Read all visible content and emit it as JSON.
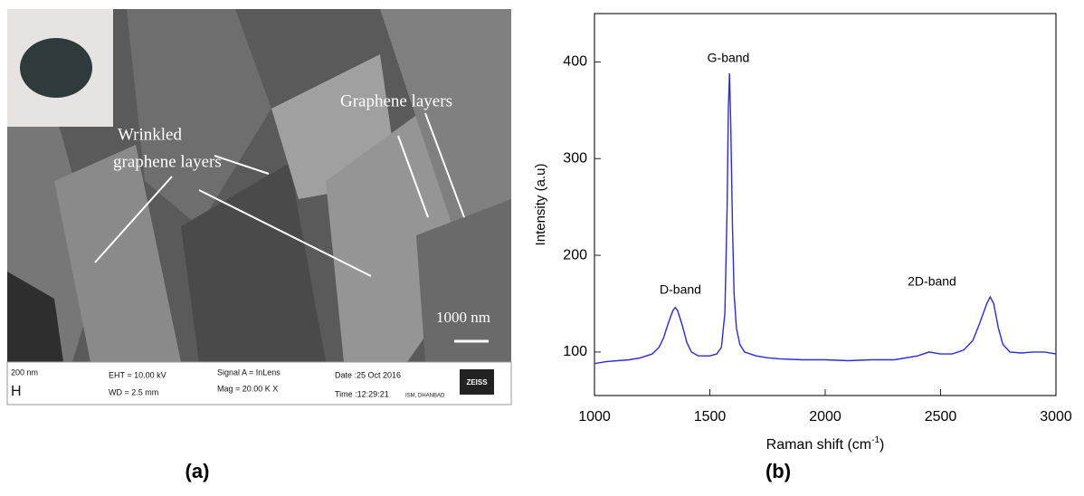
{
  "panel_a": {
    "annotations": {
      "graphene": "Graphene layers",
      "wrinkled_1": "Wrinkled",
      "wrinkled_2": "graphene layers",
      "scale": "1000 nm"
    },
    "info_bar": {
      "pixel": "200 nm",
      "h": "H",
      "eht": "EHT = 10.00 kV",
      "wd": "WD =  2.5 mm",
      "signal": "Signal A = InLens",
      "mag": "Mag =  20.00 K X",
      "date": "Date :25 Oct 2016",
      "time": "Time :12:29:21",
      "site": "ISM, DHANBAD",
      "brand": "ZEISS"
    }
  },
  "panel_labels": [
    "(a)",
    "(b)"
  ],
  "chart_data": {
    "type": "line",
    "x_label": [
      "Raman shift (cm",
      "-1",
      ")"
    ],
    "y_label": "Intensity (a.u)",
    "annotations": {
      "d": "D-band",
      "g": "G-band",
      "2d": "2D-band"
    },
    "xlim": [
      1000,
      3000
    ],
    "ylim": [
      55,
      450
    ],
    "xticks": [
      1000,
      1500,
      2000,
      2500,
      3000
    ],
    "yticks": [
      100,
      200,
      300,
      400
    ],
    "x": [
      1000,
      1050,
      1100,
      1150,
      1200,
      1250,
      1280,
      1300,
      1320,
      1340,
      1350,
      1360,
      1380,
      1400,
      1420,
      1450,
      1500,
      1530,
      1550,
      1565,
      1575,
      1580,
      1585,
      1590,
      1598,
      1605,
      1615,
      1630,
      1650,
      1700,
      1750,
      1800,
      1900,
      2000,
      2100,
      2200,
      2300,
      2400,
      2450,
      2500,
      2550,
      2600,
      2640,
      2670,
      2700,
      2715,
      2730,
      2750,
      2770,
      2800,
      2850,
      2900,
      2950,
      3000
    ],
    "series": [
      {
        "color": "#2b2be0",
        "values": [
          88,
          90,
          91,
          92,
          94,
          98,
          105,
          115,
          130,
          143,
          146,
          143,
          128,
          110,
          100,
          96,
          96,
          98,
          105,
          140,
          250,
          350,
          388,
          340,
          230,
          160,
          125,
          108,
          100,
          96,
          94,
          93,
          92,
          92,
          91,
          92,
          92,
          96,
          100,
          98,
          98,
          102,
          112,
          130,
          150,
          157,
          150,
          125,
          108,
          100,
          99,
          100,
          100,
          98
        ]
      }
    ]
  }
}
